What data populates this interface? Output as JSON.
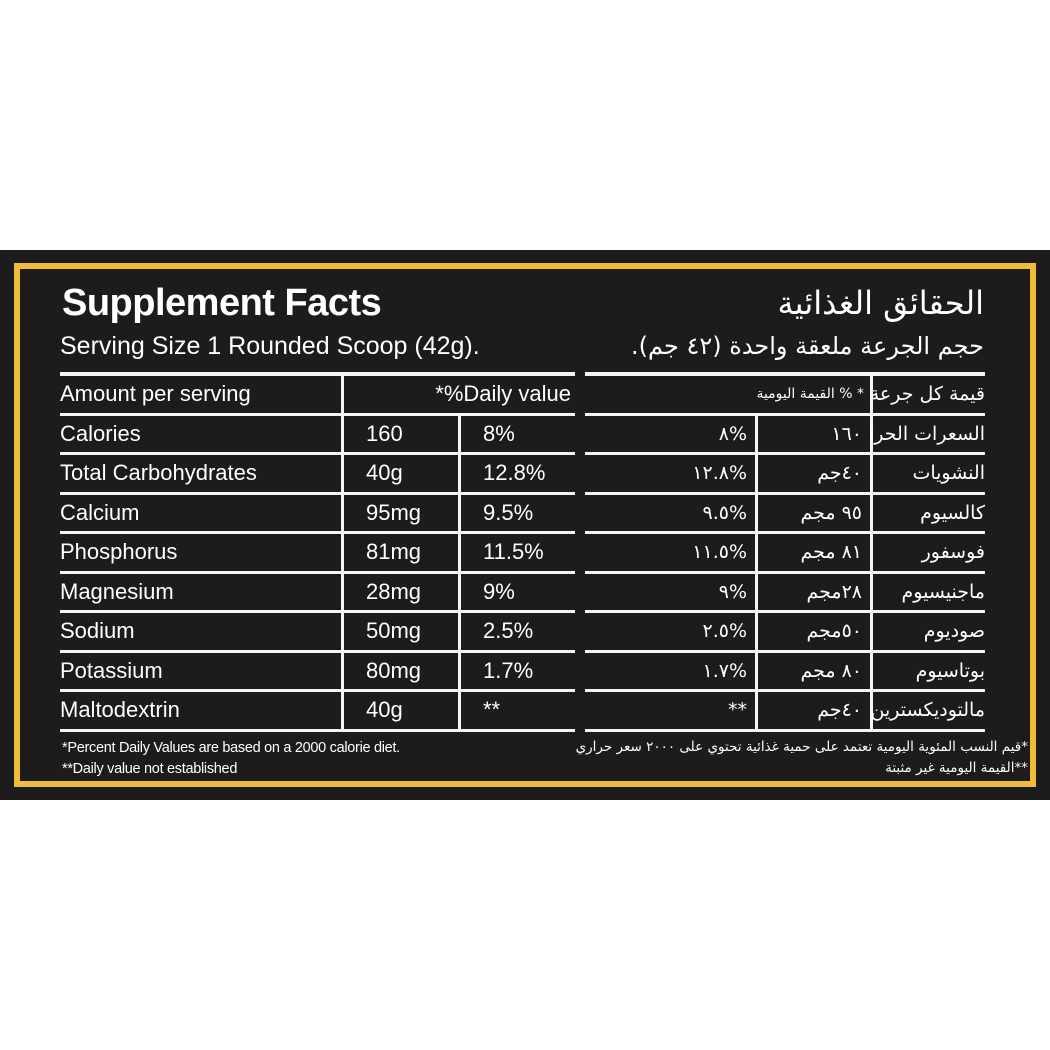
{
  "colors": {
    "background": "#1d1b1b",
    "border": "#f0bc3c",
    "text": "#ffffff"
  },
  "english": {
    "title": "Supplement Facts",
    "serving": "Serving Size 1 Rounded Scoop (42g).",
    "header_amount": "Amount per serving",
    "header_dv": "*%Daily value",
    "rows": [
      {
        "name": "Calories",
        "amount": "160",
        "dv": "8%"
      },
      {
        "name": "Total Carbohydrates",
        "amount": "40g",
        "dv": "12.8%"
      },
      {
        "name": "Calcium",
        "amount": "95mg",
        "dv": "9.5%"
      },
      {
        "name": "Phosphorus",
        "amount": "81mg",
        "dv": "11.5%"
      },
      {
        "name": "Magnesium",
        "amount": "28mg",
        "dv": "9%"
      },
      {
        "name": "Sodium",
        "amount": "50mg",
        "dv": "2.5%"
      },
      {
        "name": "Potassium",
        "amount": "80mg",
        "dv": "1.7%"
      },
      {
        "name": "Maltodextrin",
        "amount": "40g",
        "dv": "**"
      }
    ],
    "footnote1": "*Percent Daily Values are based on a 2000 calorie diet.",
    "footnote2": "**Daily value not established"
  },
  "arabic": {
    "title": "الحقائق الغذائية",
    "serving": "حجم الجرعة ملعقة واحدة (٤٢ جم).",
    "header_amount": "قيمة كل جرعة",
    "header_dv": "* % القيمة اليومية",
    "rows": [
      {
        "name": "السعرات الحرارية",
        "amount": "١٦٠",
        "dv": "%٨"
      },
      {
        "name": "النشويات",
        "amount": "٤٠جم",
        "dv": "%١٢.٨"
      },
      {
        "name": "كالسيوم",
        "amount": "٩٥ مجم",
        "dv": "%٩.٥"
      },
      {
        "name": "فوسفور",
        "amount": "٨١ مجم",
        "dv": "%١١.٥"
      },
      {
        "name": "ماجنيسيوم",
        "amount": "٢٨مجم",
        "dv": "%٩"
      },
      {
        "name": "صوديوم",
        "amount": "٥٠مجم",
        "dv": "%٢.٥"
      },
      {
        "name": "بوتاسيوم",
        "amount": "٨٠ مجم",
        "dv": "%١.٧"
      },
      {
        "name": "مالتوديكسترين",
        "amount": "٤٠جم",
        "dv": "**"
      }
    ],
    "footnote1": "*قيم النسب المئوية اليومية تعتمد على حمية غذائية تحتوي على ٢٠٠٠ سعر حراري",
    "footnote2": "**القيمة اليومية غير مثبتة"
  }
}
